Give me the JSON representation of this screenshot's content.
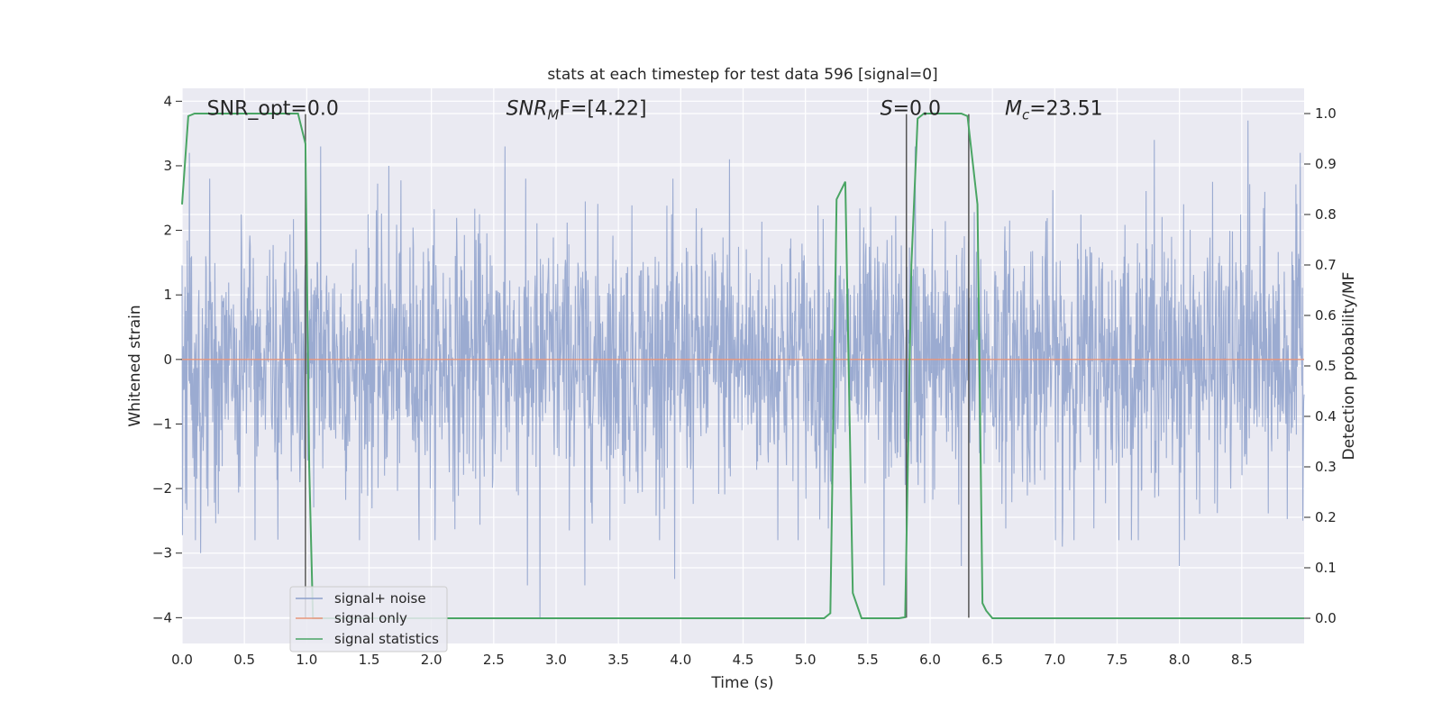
{
  "chart_data": {
    "type": "line",
    "title": "stats at each timestep for test data 596 [signal=0]",
    "xlabel": "Time (s)",
    "ylabel": "Whitened strain",
    "y2label": "Detection probability/MF",
    "xlim": [
      0.0,
      9.0
    ],
    "ylim": [
      -4.4,
      4.2
    ],
    "y2lim": [
      -0.05,
      1.05
    ],
    "xticks": [
      0.0,
      0.5,
      1.0,
      1.5,
      2.0,
      2.5,
      3.0,
      3.5,
      4.0,
      4.5,
      5.0,
      5.5,
      6.0,
      6.5,
      7.0,
      7.5,
      8.0,
      8.5
    ],
    "xtick_labels": [
      "0.0",
      "0.5",
      "1.0",
      "1.5",
      "2.0",
      "2.5",
      "3.0",
      "3.5",
      "4.0",
      "4.5",
      "5.0",
      "5.5",
      "6.0",
      "6.5",
      "7.0",
      "7.5",
      "8.0",
      "8.5"
    ],
    "yticks": [
      -4,
      -3,
      -2,
      -1,
      0,
      1,
      2,
      3,
      4
    ],
    "ytick_labels": [
      "−4",
      "−3",
      "−2",
      "−1",
      "0",
      "1",
      "2",
      "3",
      "4"
    ],
    "y2ticks": [
      0.0,
      0.1,
      0.2,
      0.3,
      0.4,
      0.5,
      0.6,
      0.7,
      0.8,
      0.9,
      1.0
    ],
    "y2tick_labels": [
      "0.0",
      "0.1",
      "0.2",
      "0.3",
      "0.4",
      "0.5",
      "0.6",
      "0.7",
      "0.8",
      "0.9",
      "1.0"
    ],
    "grid": true,
    "legend_placement": "lower-left",
    "annotations": [
      {
        "id": "snr-opt",
        "text": "SNR_opt=0.0",
        "x": 0.2,
        "y": 3.9
      },
      {
        "id": "snr-mf",
        "prefix": "SNR",
        "sub": "M",
        "suffix": "F=[4.22]",
        "x": 2.6,
        "y": 3.9
      },
      {
        "id": "s-stat",
        "prefix": "S",
        "sub": "",
        "suffix": "=0.0",
        "x": 5.6,
        "y": 3.9
      },
      {
        "id": "mc",
        "prefix": "M",
        "sub": "c",
        "suffix": "=23.51",
        "x": 6.6,
        "y": 3.9
      }
    ],
    "vertical_markers": [
      {
        "x": 0.99,
        "y_top": 3.8,
        "y_bottom": -4.0
      },
      {
        "x": 5.81,
        "y_top": 3.8,
        "y_bottom": -4.0
      },
      {
        "x": 6.31,
        "y_top": 3.8,
        "y_bottom": -4.0
      }
    ],
    "series": [
      {
        "name": "signal+ noise",
        "color": "#8da0cb",
        "axis": "left",
        "noise_sigma": 1.0,
        "peaks": [
          {
            "x": 0.06,
            "y": 3.2
          },
          {
            "x": 0.15,
            "y": -3.0
          },
          {
            "x": 1.11,
            "y": 3.3
          },
          {
            "x": 1.66,
            "y": 3.0
          },
          {
            "x": 2.59,
            "y": 3.3
          },
          {
            "x": 2.77,
            "y": -3.5
          },
          {
            "x": 2.87,
            "y": -4.0
          },
          {
            "x": 3.23,
            "y": -3.5
          },
          {
            "x": 3.95,
            "y": -3.4
          },
          {
            "x": 4.39,
            "y": 3.1
          },
          {
            "x": 5.63,
            "y": -3.5
          },
          {
            "x": 5.88,
            "y": 3.3
          },
          {
            "x": 7.06,
            "y": -2.9
          },
          {
            "x": 7.8,
            "y": 3.4
          },
          {
            "x": 8.0,
            "y": -3.2
          },
          {
            "x": 8.55,
            "y": 3.7
          },
          {
            "x": 8.97,
            "y": 3.2
          },
          {
            "x": 6.25,
            "y": -3.2
          }
        ]
      },
      {
        "name": "signal only",
        "color": "#e8967a",
        "axis": "left",
        "x": [
          0.0,
          9.0
        ],
        "y": [
          0.0,
          0.0
        ]
      },
      {
        "name": "signal statistics",
        "color": "#4aa564",
        "axis": "right",
        "x": [
          0.0,
          0.05,
          0.1,
          0.2,
          0.3,
          0.5,
          0.7,
          0.85,
          0.93,
          0.99,
          1.02,
          1.05,
          1.1,
          5.15,
          5.2,
          5.25,
          5.32,
          5.38,
          5.45,
          5.75,
          5.8,
          5.85,
          5.9,
          5.95,
          6.0,
          6.25,
          6.3,
          6.38,
          6.42,
          6.45,
          6.5,
          9.0
        ],
        "y": [
          0.82,
          0.995,
          1.0,
          1.0,
          1.0,
          1.0,
          1.0,
          1.0,
          1.0,
          0.94,
          0.3,
          0.0,
          0.0,
          0.0,
          0.01,
          0.83,
          0.865,
          0.05,
          0.0,
          0.0,
          0.002,
          0.7,
          0.99,
          1.0,
          1.0,
          1.0,
          0.995,
          0.82,
          0.03,
          0.015,
          0.0,
          0.0
        ]
      }
    ]
  }
}
